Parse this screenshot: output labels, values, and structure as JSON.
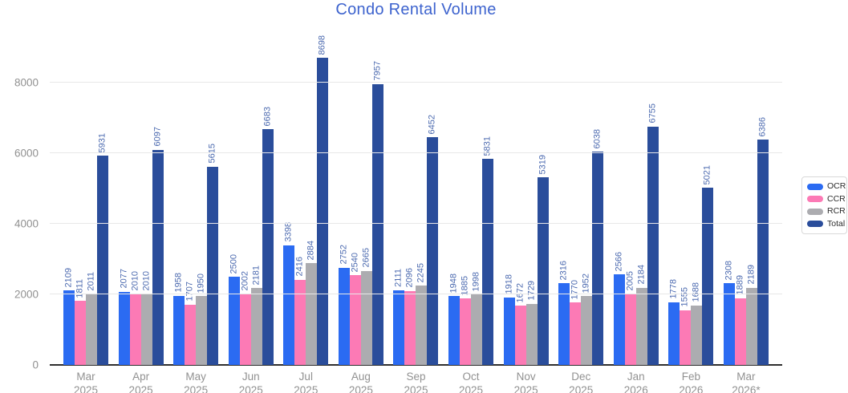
{
  "chart": {
    "title": "Condo Rental Volume"
  },
  "colors": {
    "title": "#3D63CE",
    "axis_text": "#919191",
    "value_label": "#4D6BB0",
    "gridline": "#e8e8e8",
    "baseline": "#2e2e2e",
    "legend_border": "#d9d9d9"
  },
  "chart_data": {
    "type": "bar",
    "title": "Condo Rental Volume",
    "categories": [
      "Mar 2025",
      "Apr 2025",
      "May 2025",
      "Jun 2025",
      "Jul 2025",
      "Aug 2025",
      "Sep 2025",
      "Oct 2025",
      "Nov 2025",
      "Dec 2025",
      "Jan 2026",
      "Feb 2026",
      "Mar 2026*"
    ],
    "series": [
      {
        "name": "OCR",
        "color": "#2B6BF2",
        "values": [
          2109,
          2077,
          1958,
          2500,
          3398,
          2752,
          2111,
          1948,
          1918,
          2316,
          2566,
          1778,
          2308
        ]
      },
      {
        "name": "CCR",
        "color": "#FC7AB5",
        "values": [
          1811,
          2010,
          1707,
          2002,
          2416,
          2540,
          2096,
          1885,
          1672,
          1770,
          2005,
          1555,
          1889
        ]
      },
      {
        "name": "RCR",
        "color": "#ACACB0",
        "values": [
          2011,
          2010,
          1950,
          2181,
          2884,
          2665,
          2245,
          1998,
          1729,
          1952,
          2184,
          1688,
          2189
        ]
      },
      {
        "name": "Total",
        "color": "#2A4D9B",
        "values": [
          5931,
          6097,
          5615,
          6683,
          8698,
          7957,
          6452,
          5831,
          5319,
          6038,
          6755,
          5021,
          6386
        ]
      }
    ],
    "xlabel": "",
    "ylabel": "",
    "y_ticks": [
      0,
      2000,
      4000,
      6000,
      8000
    ],
    "ylim": [
      0,
      9091
    ],
    "grid": true,
    "legend_position": "right",
    "legend_labels": [
      "OCR",
      "CCR",
      "RCR",
      "Total"
    ],
    "value_labels": "rotated, above each bar"
  }
}
